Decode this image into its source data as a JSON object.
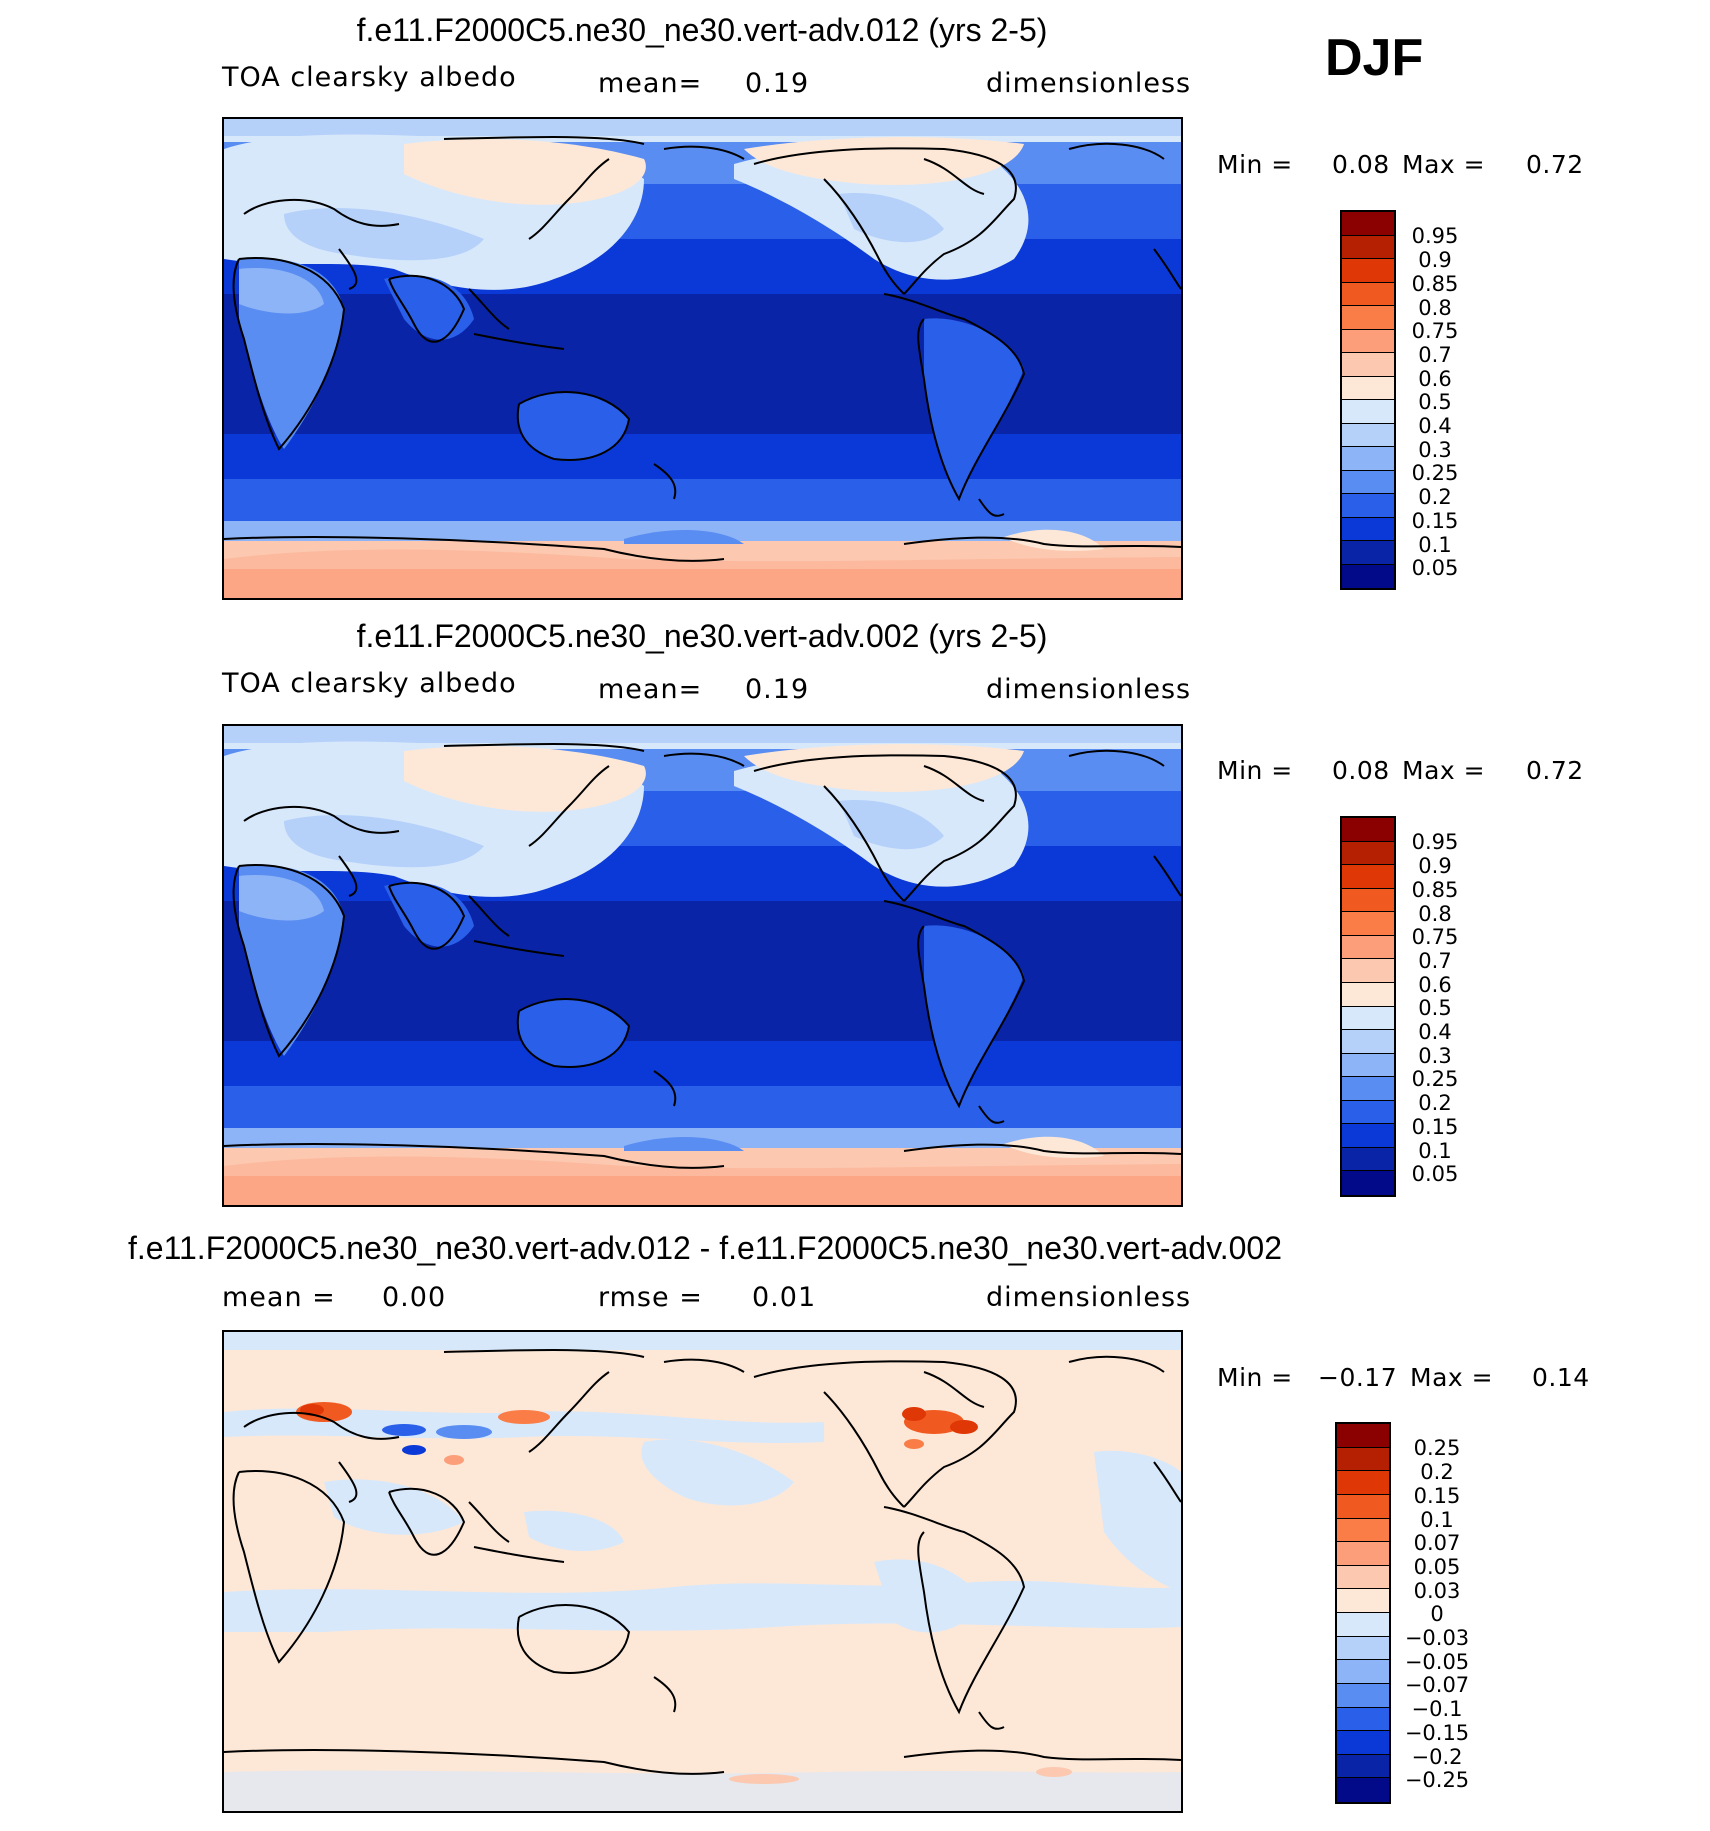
{
  "season": "DJF",
  "colors": {
    "coast": "#000000",
    "scale_colors": [
      "#8b0000",
      "#b51f02",
      "#e03706",
      "#f05a20",
      "#fa7d48",
      "#fc9e7a",
      "#fcc8b0",
      "#fde8d8",
      "#d7e8fb",
      "#b6d1f9",
      "#8db4f7",
      "#5a8df2",
      "#2a5fe9",
      "#0b39d7",
      "#0a24a8",
      "#030a8a"
    ]
  },
  "panels": [
    {
      "title": "f.e11.F2000C5.ne30_ne30.vert-adv.012 (yrs 2-5)",
      "left_label": "TOA clearsky albedo",
      "mean_label": "mean=",
      "mean_value": "0.19",
      "units": "dimensionless",
      "min_label": "Min =",
      "min_value": "0.08",
      "max_label": "Max =",
      "max_value": "0.72",
      "levels": [
        "0.95",
        "0.9",
        "0.85",
        "0.8",
        "0.75",
        "0.7",
        "0.6",
        "0.5",
        "0.4",
        "0.3",
        "0.25",
        "0.2",
        "0.15",
        "0.1",
        "0.05"
      ]
    },
    {
      "title": "f.e11.F2000C5.ne30_ne30.vert-adv.002 (yrs 2-5)",
      "left_label": "TOA clearsky albedo",
      "mean_label": "mean=",
      "mean_value": "0.19",
      "units": "dimensionless",
      "min_label": "Min =",
      "min_value": "0.08",
      "max_label": "Max =",
      "max_value": "0.72",
      "levels": [
        "0.95",
        "0.9",
        "0.85",
        "0.8",
        "0.75",
        "0.7",
        "0.6",
        "0.5",
        "0.4",
        "0.3",
        "0.25",
        "0.2",
        "0.15",
        "0.1",
        "0.05"
      ]
    },
    {
      "title": "f.e11.F2000C5.ne30_ne30.vert-adv.012 - f.e11.F2000C5.ne30_ne30.vert-adv.002",
      "left_label": "mean =",
      "left_value": "0.00",
      "rmse_label": "rmse =",
      "rmse_value": "0.01",
      "units": "dimensionless",
      "min_label": "Min =",
      "min_value": "−0.17",
      "max_label": "Max =",
      "max_value": "0.14",
      "levels": [
        "0.25",
        "0.2",
        "0.15",
        "0.1",
        "0.07",
        "0.05",
        "0.03",
        "0",
        "−0.03",
        "−0.05",
        "−0.07",
        "−0.1",
        "−0.15",
        "−0.2",
        "−0.25"
      ]
    }
  ]
}
